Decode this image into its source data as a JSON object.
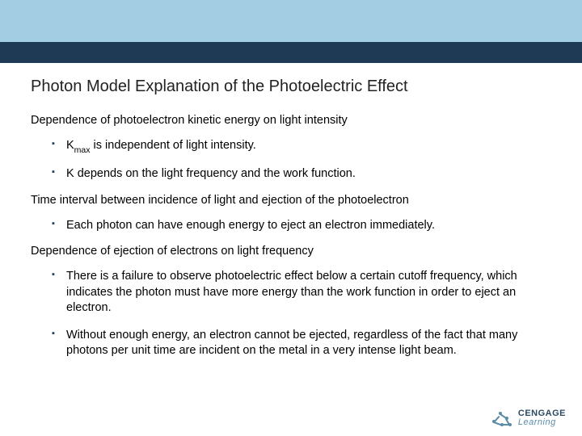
{
  "header": {
    "light_color": "#a3cde2",
    "dark_color": "#1f3a54"
  },
  "title": "Photon Model Explanation of the Photoelectric Effect",
  "sections": [
    {
      "heading": "Dependence of photoelectron kinetic energy on light intensity",
      "bullets": [
        {
          "html": "K<span class=\"sub\">max</span> is independent of light intensity."
        },
        {
          "html": "K depends on the light frequency and the work function."
        }
      ]
    },
    {
      "heading": "Time interval between incidence of light and ejection of the photoelectron",
      "bullets": [
        {
          "html": "Each photon can have enough energy to eject an electron immediately."
        }
      ]
    },
    {
      "heading": "Dependence of ejection of electrons on light frequency",
      "bullets": [
        {
          "html": "There is a failure to observe photoelectric effect below a certain cutoff frequency, which indicates the photon must have more energy than the work function in order to eject an electron."
        },
        {
          "html": "Without enough energy, an electron cannot be ejected, regardless of the fact that many photons per unit time are incident on the metal in a very intense light beam."
        }
      ]
    }
  ],
  "logo": {
    "brand": "CENGAGE",
    "sub": "Learning"
  }
}
